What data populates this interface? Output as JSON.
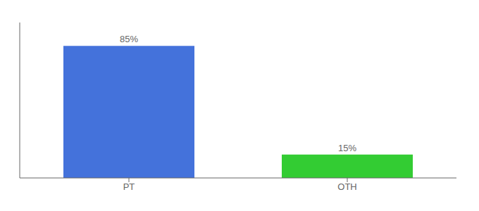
{
  "chart_data": {
    "type": "bar",
    "categories": [
      "PT",
      "OTH"
    ],
    "values": [
      85,
      15
    ],
    "value_labels": [
      "85%",
      "15%"
    ],
    "colors": [
      "#4472db",
      "#33cc33"
    ],
    "ylim": [
      0,
      100
    ],
    "data_labels": true,
    "tick_labels": "x"
  }
}
